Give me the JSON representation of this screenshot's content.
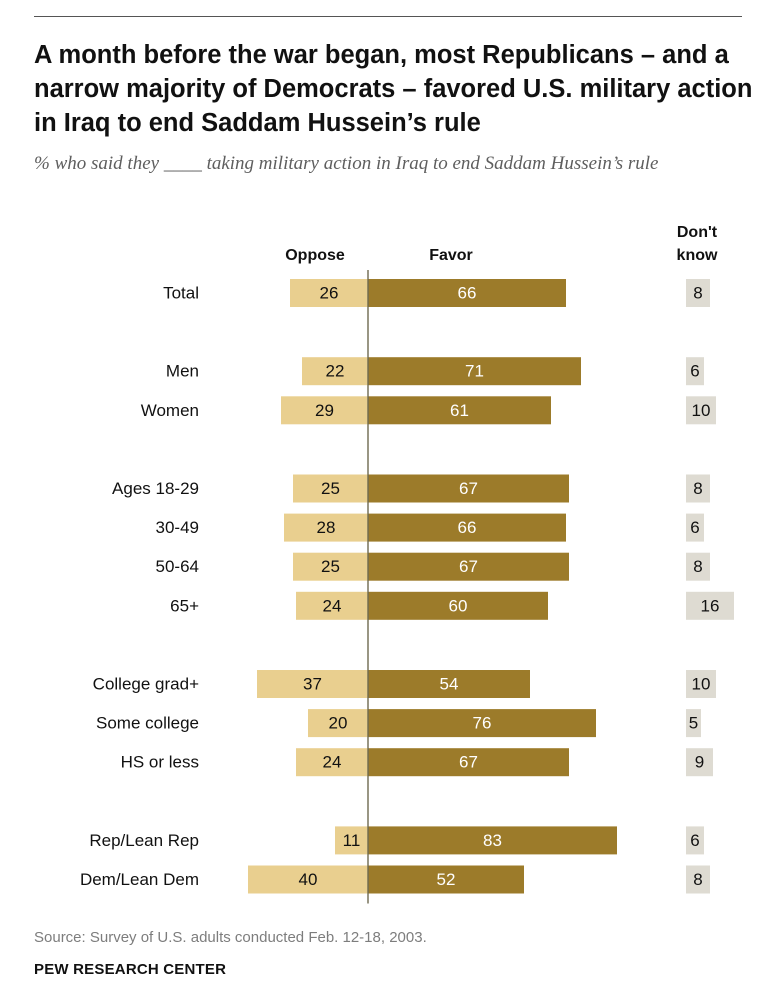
{
  "title": "A month before the war began, most Republicans – and a narrow majority of Democrats – favored U.S. military action in Iraq to end Saddam Hussein’s rule",
  "subtitle": "% who said they ____ taking military action in Iraq to end Saddam Hussein’s rule",
  "source": "Source: Survey of U.S. adults conducted Feb. 12-18, 2003.",
  "organization": "PEW RESEARCH CENTER",
  "colors": {
    "oppose": "#e9cf8f",
    "favor": "#9c7b2a",
    "dont_know": "#dedbd2",
    "axis": "#6e6a50",
    "favor_label": "#ffffff",
    "dark_label": "#111111"
  },
  "chart_data": {
    "type": "bar",
    "orientation": "horizontal-diverging",
    "columns": {
      "oppose": "Oppose",
      "favor": "Favor",
      "dont_know_line1": "Don't",
      "dont_know_line2": "know"
    },
    "categories": [
      "Total",
      "Men",
      "Women",
      "Ages 18-29",
      "30-49",
      "50-64",
      "65+",
      "College grad+",
      "Some college",
      "HS or less",
      "Rep/Lean Rep",
      "Dem/Lean Dem"
    ],
    "groups": [
      [
        0
      ],
      [
        1,
        2
      ],
      [
        3,
        4,
        5,
        6
      ],
      [
        7,
        8,
        9
      ],
      [
        10,
        11
      ]
    ],
    "series": [
      {
        "name": "Oppose",
        "values": [
          26,
          22,
          29,
          25,
          28,
          25,
          24,
          37,
          20,
          24,
          11,
          40
        ]
      },
      {
        "name": "Favor",
        "values": [
          66,
          71,
          61,
          67,
          66,
          67,
          60,
          54,
          76,
          67,
          83,
          52
        ]
      },
      {
        "name": "Don't know",
        "values": [
          8,
          6,
          10,
          8,
          6,
          8,
          16,
          10,
          5,
          9,
          6,
          8
        ]
      }
    ],
    "unit": "%",
    "xlim": [
      -40,
      83
    ]
  }
}
